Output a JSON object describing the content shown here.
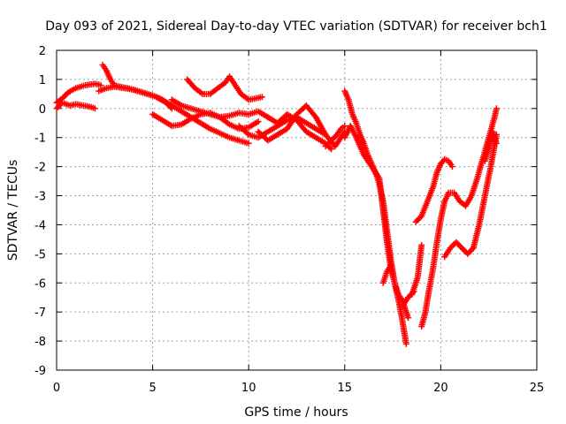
{
  "chart_data": {
    "type": "scatter",
    "title": "Day 093 of 2021, Sidereal Day-to-day VTEC variation (SDTVAR) for receiver bch1",
    "xlabel": "GPS time / hours",
    "ylabel": "SDTVAR / TECUs",
    "xlim": [
      0,
      25
    ],
    "ylim": [
      -9,
      2
    ],
    "xticks": [
      "0",
      "5",
      "10",
      "15",
      "20",
      "25"
    ],
    "yticks": [
      "2",
      "1",
      "0",
      "-1",
      "-2",
      "-3",
      "-4",
      "-5",
      "-6",
      "-7",
      "-8",
      "-9"
    ],
    "grid": true,
    "marker": "plus",
    "color": "#ff0000",
    "series": [
      {
        "x": [
          0.0,
          0.3,
          0.6,
          1.0,
          1.5,
          2.0,
          2.3
        ],
        "y": [
          0.2,
          0.35,
          0.55,
          0.7,
          0.8,
          0.85,
          0.8
        ]
      },
      {
        "x": [
          0.0,
          0.3,
          0.7,
          1.0,
          1.4,
          1.8,
          2.0
        ],
        "y": [
          0.0,
          0.2,
          0.1,
          0.15,
          0.1,
          0.05,
          0.0
        ]
      },
      {
        "x": [
          2.4,
          2.6,
          2.8,
          3.0,
          3.3,
          3.7,
          4.2,
          4.7,
          5.2,
          5.7,
          6.0
        ],
        "y": [
          1.5,
          1.3,
          1.0,
          0.8,
          0.75,
          0.7,
          0.6,
          0.5,
          0.4,
          0.2,
          0.0
        ]
      },
      {
        "x": [
          2.2,
          2.6,
          3.0,
          3.5,
          4.0,
          4.5,
          5.0,
          5.5,
          6.0,
          6.5,
          7.0,
          7.5,
          8.0,
          8.5,
          9.0,
          9.5,
          10.0
        ],
        "y": [
          0.6,
          0.7,
          0.75,
          0.7,
          0.65,
          0.55,
          0.45,
          0.3,
          0.1,
          -0.1,
          -0.3,
          -0.5,
          -0.7,
          -0.85,
          -1.0,
          -1.1,
          -1.2
        ]
      },
      {
        "x": [
          5.0,
          5.5,
          6.0,
          6.5,
          7.0,
          7.5,
          8.0,
          8.5,
          9.0,
          9.5,
          10.0,
          10.5
        ],
        "y": [
          -0.2,
          -0.4,
          -0.6,
          -0.55,
          -0.35,
          -0.2,
          -0.15,
          -0.3,
          -0.55,
          -0.7,
          -0.65,
          -0.45
        ]
      },
      {
        "x": [
          6.0,
          6.5,
          7.0,
          7.5,
          8.0,
          8.5,
          9.0,
          9.5,
          10.0,
          10.5,
          11.0
        ],
        "y": [
          0.3,
          0.1,
          0.0,
          -0.1,
          -0.2,
          -0.3,
          -0.25,
          -0.15,
          -0.2,
          -0.1,
          -0.3
        ]
      },
      {
        "x": [
          6.8,
          7.2,
          7.6,
          8.0,
          8.4,
          8.8,
          9.0,
          9.3,
          9.6,
          10.0,
          10.4,
          10.7
        ],
        "y": [
          1.0,
          0.7,
          0.5,
          0.5,
          0.7,
          0.9,
          1.1,
          0.8,
          0.5,
          0.3,
          0.35,
          0.4
        ]
      },
      {
        "x": [
          9.5,
          10.0,
          10.5,
          11.0,
          11.5,
          12.0,
          12.5,
          13.0,
          13.5,
          14.0
        ],
        "y": [
          -0.6,
          -0.9,
          -1.0,
          -0.8,
          -0.6,
          -0.4,
          -0.3,
          -0.5,
          -0.7,
          -0.9
        ]
      },
      {
        "x": [
          10.5,
          11.0,
          11.5,
          12.0,
          12.5,
          13.0,
          13.5,
          14.0,
          14.5,
          15.0
        ],
        "y": [
          -0.8,
          -1.1,
          -0.9,
          -0.7,
          -0.2,
          0.1,
          -0.3,
          -0.9,
          -1.3,
          -0.8
        ]
      },
      {
        "x": [
          11.0,
          11.5,
          12.0,
          12.5,
          13.0,
          13.5,
          14.0,
          14.3
        ],
        "y": [
          -0.3,
          -0.5,
          -0.2,
          -0.4,
          -0.8,
          -1.0,
          -1.2,
          -1.4
        ]
      },
      {
        "x": [
          14.0,
          14.3,
          14.6,
          14.8,
          15.0
        ],
        "y": [
          -1.3,
          -1.1,
          -0.9,
          -0.7,
          -0.6
        ]
      },
      {
        "x": [
          15.0,
          15.2,
          15.4,
          15.6,
          15.8,
          16.0,
          16.2,
          16.4,
          16.6,
          16.8,
          17.0,
          17.2,
          17.4,
          17.6,
          17.8,
          18.0,
          18.2
        ],
        "y": [
          0.6,
          0.3,
          -0.2,
          -0.5,
          -0.9,
          -1.2,
          -1.6,
          -1.9,
          -2.2,
          -2.6,
          -3.2,
          -4.2,
          -5.2,
          -6.0,
          -6.6,
          -7.3,
          -8.1
        ]
      },
      {
        "x": [
          15.0,
          15.3,
          15.6,
          16.0,
          16.4,
          16.8,
          17.0,
          17.2,
          17.4,
          17.6,
          17.8,
          18.0,
          18.3
        ],
        "y": [
          -1.0,
          -0.6,
          -1.0,
          -1.6,
          -2.0,
          -2.4,
          -3.5,
          -4.6,
          -5.5,
          -6.0,
          -6.4,
          -6.6,
          -7.2
        ]
      },
      {
        "x": [
          17.0,
          17.2,
          17.4
        ],
        "y": [
          -6.0,
          -5.6,
          -5.4
        ]
      },
      {
        "x": [
          18.0,
          18.3,
          18.6
        ],
        "y": [
          -6.8,
          -6.5,
          -6.3
        ]
      },
      {
        "x": [
          18.5,
          18.8,
          19.0
        ],
        "y": [
          -6.4,
          -5.8,
          -4.7
        ]
      },
      {
        "x": [
          18.7,
          19.0,
          19.3,
          19.6,
          19.8,
          20.0,
          20.2,
          20.4,
          20.6
        ],
        "y": [
          -3.9,
          -3.7,
          -3.2,
          -2.7,
          -2.2,
          -1.9,
          -1.75,
          -1.8,
          -2.0
        ]
      },
      {
        "x": [
          19.0,
          19.2,
          19.4,
          19.6,
          19.8,
          20.0,
          20.2,
          20.4,
          20.7,
          21.0,
          21.3,
          21.6,
          21.9,
          22.2,
          22.5,
          22.8,
          22.9
        ],
        "y": [
          -7.5,
          -7.0,
          -6.2,
          -5.5,
          -4.6,
          -3.8,
          -3.2,
          -2.9,
          -2.9,
          -3.2,
          -3.35,
          -3.0,
          -2.4,
          -1.7,
          -1.0,
          -0.3,
          0.0
        ]
      },
      {
        "x": [
          20.2,
          20.5,
          20.8,
          21.1,
          21.4,
          21.7,
          22.0,
          22.3,
          22.6,
          22.9
        ],
        "y": [
          -5.1,
          -4.8,
          -4.6,
          -4.8,
          -5.0,
          -4.8,
          -4.0,
          -3.0,
          -2.0,
          -0.9
        ]
      },
      {
        "x": [
          22.3,
          22.5,
          22.7,
          22.9
        ],
        "y": [
          -1.8,
          -1.4,
          -0.8,
          -1.2
        ]
      }
    ]
  }
}
